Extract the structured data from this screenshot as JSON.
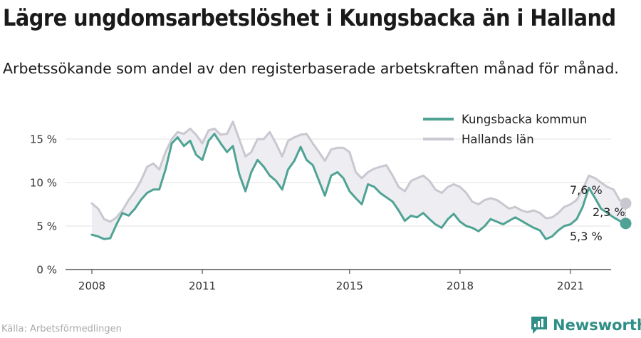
{
  "header": {
    "title": "Lägre ungdomsarbetslöshet i Kungsbacka än i Halland",
    "subtitle": "Arbetssökande som andel av den registerbaserade arbetskraften månad för månad."
  },
  "footer": {
    "source": "Källa: Arbetsförmedlingen",
    "brand": "Newsworthy"
  },
  "colors": {
    "kungsbacka": "#4fa394",
    "halland": "#c9c8d0",
    "band": "#ededf2",
    "brand": "#2f8f87"
  },
  "chart_data": {
    "type": "line",
    "xlabel": "",
    "ylabel": "",
    "ylim": [
      0,
      17.5
    ],
    "y_ticks": [
      0,
      5,
      10,
      15
    ],
    "y_tick_labels": [
      "0 %",
      "5 %",
      "10 %",
      "15 %"
    ],
    "x_ticks": [
      2008,
      2011,
      2015,
      2018,
      2021
    ],
    "x_tick_labels": [
      "2008",
      "2011",
      "2015",
      "2018",
      "2021"
    ],
    "legend_position": "top-right",
    "annotations": {
      "halland_last": "7,6 %",
      "difference": "2,3 %",
      "kungsbacka_last": "5,3 %"
    },
    "series": [
      {
        "name": "Kungsbacka kommun",
        "points": [
          [
            2008.0,
            4.0
          ],
          [
            2008.17,
            3.8
          ],
          [
            2008.33,
            3.5
          ],
          [
            2008.5,
            3.6
          ],
          [
            2008.67,
            5.2
          ],
          [
            2008.83,
            6.5
          ],
          [
            2009.0,
            6.2
          ],
          [
            2009.17,
            7.0
          ],
          [
            2009.33,
            8.0
          ],
          [
            2009.5,
            8.8
          ],
          [
            2009.67,
            9.2
          ],
          [
            2009.83,
            9.2
          ],
          [
            2010.0,
            11.5
          ],
          [
            2010.17,
            14.5
          ],
          [
            2010.33,
            15.2
          ],
          [
            2010.5,
            14.2
          ],
          [
            2010.67,
            14.8
          ],
          [
            2010.83,
            13.2
          ],
          [
            2011.0,
            12.6
          ],
          [
            2011.17,
            14.8
          ],
          [
            2011.33,
            15.6
          ],
          [
            2011.5,
            14.5
          ],
          [
            2011.67,
            13.5
          ],
          [
            2011.83,
            14.2
          ],
          [
            2012.0,
            11.0
          ],
          [
            2012.17,
            9.0
          ],
          [
            2012.33,
            11.2
          ],
          [
            2012.5,
            12.6
          ],
          [
            2012.67,
            11.8
          ],
          [
            2012.83,
            10.8
          ],
          [
            2013.0,
            10.2
          ],
          [
            2013.17,
            9.2
          ],
          [
            2013.33,
            11.5
          ],
          [
            2013.5,
            12.5
          ],
          [
            2013.67,
            14.1
          ],
          [
            2013.83,
            12.6
          ],
          [
            2014.0,
            12.0
          ],
          [
            2014.17,
            10.2
          ],
          [
            2014.33,
            8.5
          ],
          [
            2014.5,
            10.8
          ],
          [
            2014.67,
            11.2
          ],
          [
            2014.83,
            10.5
          ],
          [
            2015.0,
            9.0
          ],
          [
            2015.17,
            8.2
          ],
          [
            2015.33,
            7.5
          ],
          [
            2015.5,
            9.8
          ],
          [
            2015.67,
            9.5
          ],
          [
            2015.83,
            8.8
          ],
          [
            2016.0,
            8.3
          ],
          [
            2016.17,
            7.8
          ],
          [
            2016.33,
            6.8
          ],
          [
            2016.5,
            5.6
          ],
          [
            2016.67,
            6.2
          ],
          [
            2016.83,
            6.0
          ],
          [
            2017.0,
            6.5
          ],
          [
            2017.17,
            5.8
          ],
          [
            2017.33,
            5.2
          ],
          [
            2017.5,
            4.8
          ],
          [
            2017.67,
            5.8
          ],
          [
            2017.83,
            6.4
          ],
          [
            2018.0,
            5.5
          ],
          [
            2018.17,
            5.0
          ],
          [
            2018.33,
            4.8
          ],
          [
            2018.5,
            4.4
          ],
          [
            2018.67,
            5.0
          ],
          [
            2018.83,
            5.8
          ],
          [
            2019.0,
            5.5
          ],
          [
            2019.17,
            5.2
          ],
          [
            2019.33,
            5.6
          ],
          [
            2019.5,
            6.0
          ],
          [
            2019.67,
            5.6
          ],
          [
            2019.83,
            5.2
          ],
          [
            2020.0,
            4.8
          ],
          [
            2020.17,
            4.5
          ],
          [
            2020.33,
            3.5
          ],
          [
            2020.5,
            3.8
          ],
          [
            2020.67,
            4.5
          ],
          [
            2020.83,
            5.0
          ],
          [
            2021.0,
            5.2
          ],
          [
            2021.17,
            5.8
          ],
          [
            2021.33,
            7.2
          ],
          [
            2021.5,
            9.4
          ],
          [
            2021.67,
            8.2
          ],
          [
            2021.83,
            7.0
          ],
          [
            2022.0,
            6.5
          ],
          [
            2022.17,
            6.0
          ],
          [
            2022.33,
            5.6
          ],
          [
            2022.5,
            5.3
          ]
        ]
      },
      {
        "name": "Hallands län",
        "points": [
          [
            2008.0,
            7.6
          ],
          [
            2008.17,
            7.0
          ],
          [
            2008.33,
            5.8
          ],
          [
            2008.5,
            5.5
          ],
          [
            2008.67,
            6.0
          ],
          [
            2008.83,
            6.8
          ],
          [
            2009.0,
            8.0
          ],
          [
            2009.17,
            9.0
          ],
          [
            2009.33,
            10.2
          ],
          [
            2009.5,
            11.8
          ],
          [
            2009.67,
            12.2
          ],
          [
            2009.83,
            11.5
          ],
          [
            2010.0,
            13.5
          ],
          [
            2010.17,
            15.0
          ],
          [
            2010.33,
            15.8
          ],
          [
            2010.5,
            15.6
          ],
          [
            2010.67,
            16.2
          ],
          [
            2010.83,
            15.5
          ],
          [
            2011.0,
            14.5
          ],
          [
            2011.17,
            16.0
          ],
          [
            2011.33,
            16.2
          ],
          [
            2011.5,
            15.5
          ],
          [
            2011.67,
            15.6
          ],
          [
            2011.83,
            17.0
          ],
          [
            2012.0,
            15.0
          ],
          [
            2012.17,
            13.0
          ],
          [
            2012.33,
            13.5
          ],
          [
            2012.5,
            15.0
          ],
          [
            2012.67,
            15.0
          ],
          [
            2012.83,
            15.8
          ],
          [
            2013.0,
            14.5
          ],
          [
            2013.17,
            13.0
          ],
          [
            2013.33,
            14.8
          ],
          [
            2013.5,
            15.2
          ],
          [
            2013.67,
            15.5
          ],
          [
            2013.83,
            15.6
          ],
          [
            2014.0,
            14.5
          ],
          [
            2014.17,
            13.5
          ],
          [
            2014.33,
            12.5
          ],
          [
            2014.5,
            13.8
          ],
          [
            2014.67,
            14.0
          ],
          [
            2014.83,
            14.0
          ],
          [
            2015.0,
            13.5
          ],
          [
            2015.17,
            11.2
          ],
          [
            2015.33,
            10.5
          ],
          [
            2015.5,
            11.2
          ],
          [
            2015.67,
            11.6
          ],
          [
            2015.83,
            11.8
          ],
          [
            2016.0,
            12.0
          ],
          [
            2016.17,
            10.8
          ],
          [
            2016.33,
            9.5
          ],
          [
            2016.5,
            9.0
          ],
          [
            2016.67,
            10.2
          ],
          [
            2016.83,
            10.5
          ],
          [
            2017.0,
            10.8
          ],
          [
            2017.17,
            10.2
          ],
          [
            2017.33,
            9.2
          ],
          [
            2017.5,
            8.8
          ],
          [
            2017.67,
            9.5
          ],
          [
            2017.83,
            9.8
          ],
          [
            2018.0,
            9.5
          ],
          [
            2018.17,
            8.8
          ],
          [
            2018.33,
            7.8
          ],
          [
            2018.5,
            7.5
          ],
          [
            2018.67,
            8.0
          ],
          [
            2018.83,
            8.2
          ],
          [
            2019.0,
            8.0
          ],
          [
            2019.17,
            7.5
          ],
          [
            2019.33,
            7.0
          ],
          [
            2019.5,
            7.2
          ],
          [
            2019.67,
            6.8
          ],
          [
            2019.83,
            6.6
          ],
          [
            2020.0,
            6.8
          ],
          [
            2020.17,
            6.5
          ],
          [
            2020.33,
            5.9
          ],
          [
            2020.5,
            6.0
          ],
          [
            2020.67,
            6.5
          ],
          [
            2020.83,
            7.2
          ],
          [
            2021.0,
            7.5
          ],
          [
            2021.17,
            8.0
          ],
          [
            2021.33,
            9.2
          ],
          [
            2021.5,
            10.8
          ],
          [
            2021.67,
            10.5
          ],
          [
            2021.83,
            10.0
          ],
          [
            2022.0,
            9.5
          ],
          [
            2022.17,
            9.2
          ],
          [
            2022.33,
            8.0
          ],
          [
            2022.5,
            7.6
          ]
        ]
      }
    ]
  }
}
